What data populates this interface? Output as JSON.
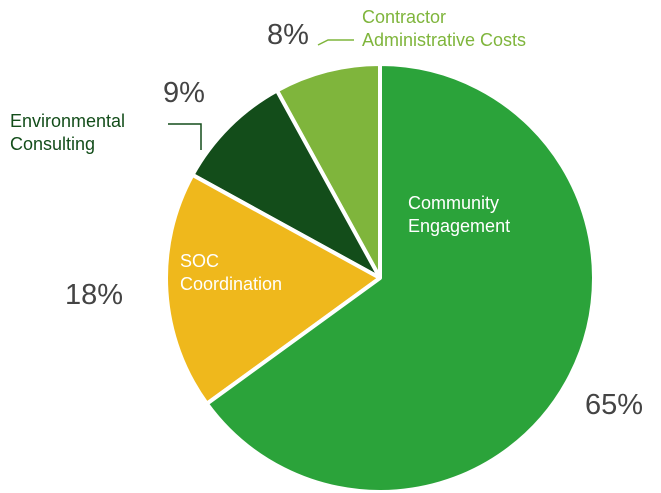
{
  "chart_data": {
    "type": "pie",
    "categories": [
      "Community Engagement",
      "SOC Coordination",
      "Environmental Consulting",
      "Contractor Administrative Costs"
    ],
    "values": [
      65,
      18,
      9,
      8
    ],
    "value_labels": [
      "65%",
      "18%",
      "9%",
      "8%"
    ],
    "colors": [
      "#2ba33a",
      "#efb81c",
      "#134d1a",
      "#7fb53c"
    ]
  }
}
